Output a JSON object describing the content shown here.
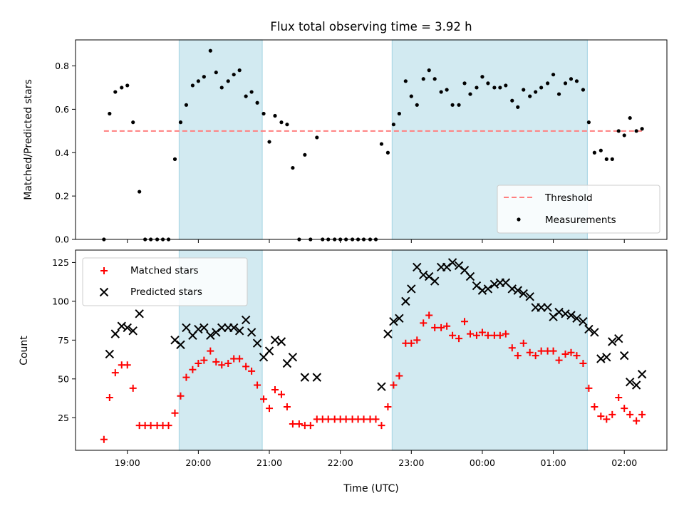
{
  "chart_data": {
    "title": "Flux total observing time = 3.92 h",
    "xlabel": "Time (UTC)",
    "x_tick_labels": [
      "19:00",
      "20:00",
      "21:00",
      "22:00",
      "23:00",
      "00:00",
      "01:00",
      "02:00"
    ],
    "x_tick_hours": [
      19,
      20,
      21,
      22,
      23,
      24,
      25,
      26
    ],
    "xlim_hours": [
      18.27,
      26.6
    ],
    "shaded_intervals_hours": [
      [
        19.73,
        20.9
      ],
      [
        22.73,
        25.48
      ]
    ],
    "colors": {
      "shade": "#add8e6",
      "threshold": "#ff7f7f",
      "measurements": "#000000",
      "matched": "#ff0000",
      "predicted": "#000000"
    },
    "subplots": [
      {
        "type": "scatter",
        "ylabel": "Matched/Predicted stars",
        "ylim": [
          0,
          0.92
        ],
        "y_ticks": [
          0.0,
          0.2,
          0.4,
          0.6,
          0.8
        ],
        "y_tick_labels": [
          "0.0",
          "0.2",
          "0.4",
          "0.6",
          "0.8"
        ],
        "legend_position": "lower-right",
        "threshold": {
          "name": "Threshold",
          "value": 0.5,
          "x_range_hours": [
            18.67,
            26.27
          ]
        },
        "series": [
          {
            "name": "Measurements",
            "x_hours": [
              18.67,
              18.75,
              18.83,
              18.92,
              19.0,
              19.08,
              19.17,
              19.25,
              19.33,
              19.42,
              19.5,
              19.58,
              19.67,
              19.75,
              19.83,
              19.92,
              20.0,
              20.08,
              20.17,
              20.25,
              20.33,
              20.42,
              20.5,
              20.58,
              20.67,
              20.75,
              20.83,
              20.92,
              21.0,
              21.08,
              21.17,
              21.25,
              21.33,
              21.42,
              21.5,
              21.58,
              21.67,
              21.75,
              21.83,
              21.92,
              22.0,
              22.08,
              22.17,
              22.25,
              22.33,
              22.42,
              22.5,
              22.58,
              22.67,
              22.75,
              22.83,
              22.92,
              23.0,
              23.08,
              23.17,
              23.25,
              23.33,
              23.42,
              23.5,
              23.58,
              23.67,
              23.75,
              23.83,
              23.92,
              24.0,
              24.08,
              24.17,
              24.25,
              24.33,
              24.42,
              24.5,
              24.58,
              24.67,
              24.75,
              24.83,
              24.92,
              25.0,
              25.08,
              25.17,
              25.25,
              25.33,
              25.42,
              25.5,
              25.58,
              25.67,
              25.75,
              25.83,
              25.92,
              26.0,
              26.08,
              26.17,
              26.25
            ],
            "y": [
              0.0,
              0.58,
              0.68,
              0.7,
              0.71,
              0.54,
              0.22,
              0.0,
              0.0,
              0.0,
              0.0,
              0.0,
              0.37,
              0.54,
              0.62,
              0.71,
              0.73,
              0.75,
              0.87,
              0.77,
              0.7,
              0.73,
              0.76,
              0.78,
              0.66,
              0.68,
              0.63,
              0.58,
              0.45,
              0.57,
              0.54,
              0.53,
              0.33,
              0.0,
              0.39,
              0.0,
              0.47,
              0.0,
              0.0,
              0.0,
              0.0,
              0.0,
              0.0,
              0.0,
              0.0,
              0.0,
              0.0,
              0.44,
              0.4,
              0.53,
              0.58,
              0.73,
              0.66,
              0.62,
              0.74,
              0.78,
              0.74,
              0.68,
              0.69,
              0.62,
              0.62,
              0.72,
              0.67,
              0.7,
              0.75,
              0.72,
              0.7,
              0.7,
              0.71,
              0.64,
              0.61,
              0.69,
              0.66,
              0.68,
              0.7,
              0.72,
              0.76,
              0.67,
              0.72,
              0.74,
              0.73,
              0.69,
              0.54,
              0.4,
              0.41,
              0.37,
              0.37,
              0.5,
              0.48,
              0.56,
              0.5,
              0.51
            ]
          }
        ]
      },
      {
        "type": "scatter",
        "ylabel": "Count",
        "ylim": [
          4,
          133
        ],
        "y_ticks": [
          25,
          50,
          75,
          100,
          125
        ],
        "y_tick_labels": [
          "25",
          "50",
          "75",
          "100",
          "125"
        ],
        "legend_position": "upper-left",
        "series": [
          {
            "name": "Matched stars",
            "marker": "plus",
            "x_hours": [
              18.67,
              18.75,
              18.83,
              18.92,
              19.0,
              19.08,
              19.17,
              19.25,
              19.33,
              19.42,
              19.5,
              19.58,
              19.67,
              19.75,
              19.83,
              19.92,
              20.0,
              20.08,
              20.17,
              20.25,
              20.33,
              20.42,
              20.5,
              20.58,
              20.67,
              20.75,
              20.83,
              20.92,
              21.0,
              21.08,
              21.17,
              21.25,
              21.33,
              21.42,
              21.5,
              21.58,
              21.67,
              21.75,
              21.83,
              21.92,
              22.0,
              22.08,
              22.17,
              22.25,
              22.33,
              22.42,
              22.5,
              22.58,
              22.67,
              22.75,
              22.83,
              22.92,
              23.0,
              23.08,
              23.17,
              23.25,
              23.33,
              23.42,
              23.5,
              23.58,
              23.67,
              23.75,
              23.83,
              23.92,
              24.0,
              24.08,
              24.17,
              24.25,
              24.33,
              24.42,
              24.5,
              24.58,
              24.67,
              24.75,
              24.83,
              24.92,
              25.0,
              25.08,
              25.17,
              25.25,
              25.33,
              25.42,
              25.5,
              25.58,
              25.67,
              25.75,
              25.83,
              25.92,
              26.0,
              26.08,
              26.17,
              26.25
            ],
            "y": [
              11,
              38,
              54,
              59,
              59,
              44,
              20,
              20,
              20,
              20,
              20,
              20,
              28,
              39,
              51,
              56,
              60,
              62,
              68,
              61,
              59,
              60,
              63,
              63,
              58,
              55,
              46,
              37,
              31,
              43,
              40,
              32,
              21,
              21,
              20,
              20,
              24,
              24,
              24,
              24,
              24,
              24,
              24,
              24,
              24,
              24,
              24,
              20,
              32,
              46,
              52,
              73,
              73,
              75,
              86,
              91,
              83,
              83,
              84,
              78,
              76,
              87,
              79,
              78,
              80,
              78,
              78,
              78,
              79,
              70,
              65,
              73,
              67,
              65,
              68,
              68,
              68,
              62,
              66,
              67,
              65,
              60,
              44,
              32,
              26,
              24,
              27,
              38,
              31,
              27,
              23,
              27
            ]
          },
          {
            "name": "Predicted stars",
            "marker": "x",
            "x_hours": [
              18.75,
              18.83,
              18.92,
              19.0,
              19.08,
              19.17,
              19.67,
              19.75,
              19.83,
              19.92,
              20.0,
              20.08,
              20.17,
              20.25,
              20.33,
              20.42,
              20.5,
              20.58,
              20.67,
              20.75,
              20.83,
              20.92,
              21.0,
              21.08,
              21.17,
              21.25,
              21.33,
              21.5,
              21.67,
              22.58,
              22.67,
              22.75,
              22.83,
              22.92,
              23.0,
              23.08,
              23.17,
              23.25,
              23.33,
              23.42,
              23.5,
              23.58,
              23.67,
              23.75,
              23.83,
              23.92,
              24.0,
              24.08,
              24.17,
              24.25,
              24.33,
              24.42,
              24.5,
              24.58,
              24.67,
              24.75,
              24.83,
              24.92,
              25.0,
              25.08,
              25.17,
              25.25,
              25.33,
              25.42,
              25.5,
              25.58,
              25.67,
              25.75,
              25.83,
              25.92,
              26.0,
              26.08,
              26.17,
              26.25
            ],
            "y": [
              66,
              79,
              84,
              83,
              81,
              92,
              75,
              72,
              83,
              78,
              82,
              83,
              78,
              80,
              83,
              83,
              83,
              81,
              88,
              80,
              73,
              64,
              68,
              75,
              74,
              60,
              64,
              51,
              51,
              45,
              79,
              87,
              89,
              100,
              108,
              122,
              117,
              116,
              113,
              122,
              122,
              125,
              123,
              120,
              116,
              110,
              107,
              108,
              111,
              112,
              112,
              108,
              107,
              105,
              103,
              96,
              96,
              96,
              90,
              93,
              92,
              91,
              89,
              87,
              82,
              80,
              63,
              64,
              74,
              76,
              65,
              48,
              46,
              53
            ]
          }
        ]
      }
    ]
  }
}
